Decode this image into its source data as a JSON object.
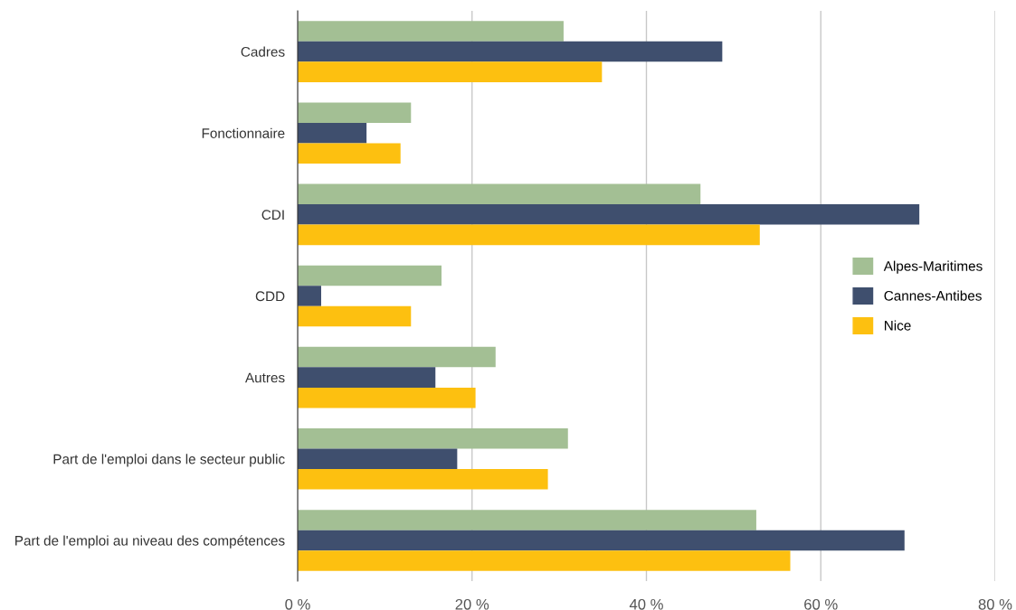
{
  "chart_data": {
    "type": "bar",
    "orientation": "horizontal",
    "categories": [
      "Cadres",
      "Fonctionnaire",
      "CDI",
      "CDD",
      "Autres",
      "Part de l'emploi dans le secteur public",
      "Part de l'emploi au niveau des compétences"
    ],
    "series": [
      {
        "name": "Alpes-Maritimes",
        "color": "#a3bf94",
        "values": [
          30.5,
          13.0,
          46.2,
          16.5,
          22.7,
          31.0,
          52.6
        ]
      },
      {
        "name": "Cannes-Antibes",
        "color": "#3f4f6e",
        "values": [
          48.7,
          7.9,
          71.3,
          2.7,
          15.8,
          18.3,
          69.6
        ]
      },
      {
        "name": "Nice",
        "color": "#fdc010",
        "values": [
          34.9,
          11.8,
          53.0,
          13.0,
          20.4,
          28.7,
          56.5
        ]
      }
    ],
    "xlim": [
      0,
      80
    ],
    "xticks": [
      {
        "value": 0,
        "label": "0 %"
      },
      {
        "value": 20,
        "label": "20 %"
      },
      {
        "value": 40,
        "label": "40 %"
      },
      {
        "value": 60,
        "label": "60 %"
      },
      {
        "value": 80,
        "label": "80 %"
      }
    ],
    "grid": "x",
    "legend": "right"
  }
}
